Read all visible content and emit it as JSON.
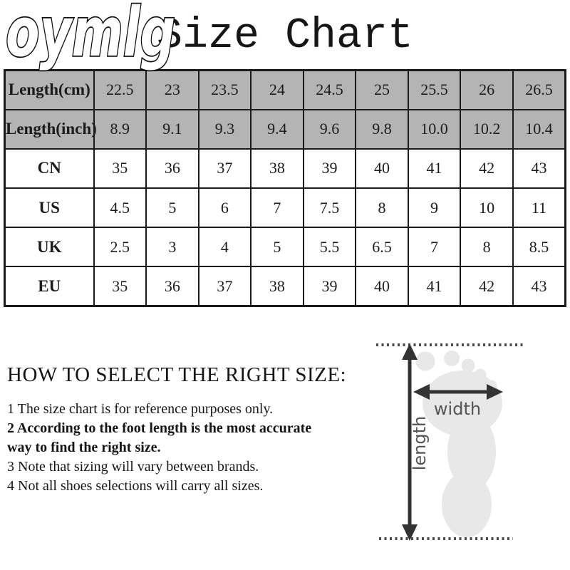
{
  "watermark": "oymlg",
  "title": "Size Chart",
  "chart_data": {
    "type": "table",
    "title": "Size Chart",
    "rows": [
      {
        "label": "Length(cm)",
        "shaded": true,
        "values": [
          "22.5",
          "23",
          "23.5",
          "24",
          "24.5",
          "25",
          "25.5",
          "26",
          "26.5"
        ]
      },
      {
        "label": "Length(inch)",
        "shaded": true,
        "values": [
          "8.9",
          "9.1",
          "9.3",
          "9.4",
          "9.6",
          "9.8",
          "10.0",
          "10.2",
          "10.4"
        ]
      },
      {
        "label": "CN",
        "shaded": false,
        "values": [
          "35",
          "36",
          "37",
          "38",
          "39",
          "40",
          "41",
          "42",
          "43"
        ]
      },
      {
        "label": "US",
        "shaded": false,
        "values": [
          "4.5",
          "5",
          "6",
          "7",
          "7.5",
          "8",
          "9",
          "10",
          "11"
        ]
      },
      {
        "label": "UK",
        "shaded": false,
        "values": [
          "2.5",
          "3",
          "4",
          "5",
          "5.5",
          "6.5",
          "7",
          "8",
          "8.5"
        ]
      },
      {
        "label": "EU",
        "shaded": false,
        "values": [
          "35",
          "36",
          "37",
          "38",
          "39",
          "40",
          "41",
          "42",
          "43"
        ]
      }
    ]
  },
  "guide": {
    "heading": "HOW TO SELECT THE RIGHT SIZE:",
    "items": [
      {
        "num": "1",
        "bold": false,
        "text": "The size chart is for reference purposes only."
      },
      {
        "num": "2",
        "bold": true,
        "text": "According to the foot length is the most accurate way to find the right size."
      },
      {
        "num": "3",
        "bold": false,
        "text": "Note that sizing will vary between brands."
      },
      {
        "num": "4",
        "bold": false,
        "text": "Not all shoes selections will carry all sizes."
      }
    ]
  },
  "diagram": {
    "width_label": "width",
    "length_label": "length"
  },
  "colors": {
    "header_row_bg": "#b4b4b4",
    "table_border": "#1a1a1a",
    "text": "#161616",
    "foot_fill": "#e8e8e8",
    "arrow": "#333333",
    "diagram_label": "#555555"
  }
}
